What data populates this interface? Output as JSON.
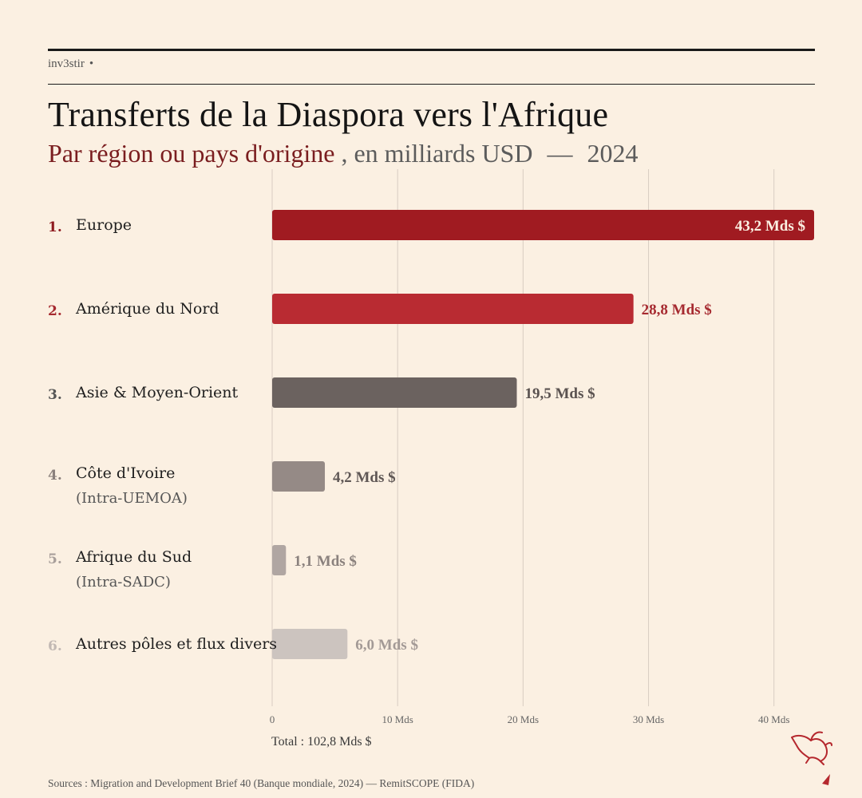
{
  "header": {
    "brand": "inv3stir",
    "brand_dot": "•",
    "title": "Transferts de la Diaspora vers l'Afrique",
    "subtitle_accent": "Par région ou pays d'origine",
    "subtitle_rest": ", en milliards USD",
    "subtitle_sep": "—",
    "subtitle_year": "2024"
  },
  "chart_data": {
    "type": "bar",
    "orientation": "horizontal",
    "title": "Transferts de la Diaspora vers l'Afrique",
    "unit_label": "Mds $",
    "xlim": [
      0,
      43.2
    ],
    "xticks": [
      {
        "value": 0,
        "label": "0"
      },
      {
        "value": 10,
        "label": "10 Mds"
      },
      {
        "value": 20,
        "label": "20 Mds"
      },
      {
        "value": 30,
        "label": "30 Mds"
      },
      {
        "value": 40,
        "label": "40 Mds"
      }
    ],
    "bars": [
      {
        "rank": "1.",
        "label": "Europe",
        "sublabel": "",
        "value": 43.2,
        "value_label": "43,2 Mds $",
        "color": "#a01b21",
        "rank_color": "#8e1a1f",
        "label_color": "#8e1a1f",
        "label_inside": true
      },
      {
        "rank": "2.",
        "label": "Amérique du Nord",
        "sublabel": "",
        "value": 28.8,
        "value_label": "28,8 Mds $",
        "color": "#b92b32",
        "rank_color": "#a62a30",
        "label_color": "#a62a30",
        "label_inside": false
      },
      {
        "rank": "3.",
        "label": "Asie & Moyen-Orient",
        "sublabel": "",
        "value": 19.5,
        "value_label": "19,5 Mds $",
        "color": "#6b625f",
        "rank_color": "#555",
        "label_color": "#5a5250",
        "label_inside": false
      },
      {
        "rank": "4.",
        "label": "Côte d'Ivoire",
        "sublabel": "(Intra-UEMOA)",
        "value": 4.2,
        "value_label": "4,2 Mds $",
        "color": "#958a86",
        "rank_color": "#8a807c",
        "label_color": "#5f5755",
        "label_inside": false
      },
      {
        "rank": "5.",
        "label": "Afrique du Sud",
        "sublabel": "(Intra-SADC)",
        "value": 1.1,
        "value_label": "1,1 Mds $",
        "color": "#b0a6a2",
        "rank_color": "#a89f9b",
        "label_color": "#8a817d",
        "label_inside": false
      },
      {
        "rank": "6.",
        "label": "Autres pôles et flux divers",
        "sublabel": "",
        "value": 6.0,
        "value_label": "6,0 Mds $",
        "color": "#ccc4bf",
        "rank_color": "#c2b9b4",
        "label_color": "#a39a96",
        "label_inside": false
      }
    ],
    "total_label": "Total : 102,8 Mds $"
  },
  "footer": {
    "sources": "Sources : Migration and Development Brief 40 (Banque mondiale, 2024) — RemitSCOPE (FIDA)",
    "logo_icon": "bull-logo-icon",
    "logo_color": "#b5282e"
  }
}
